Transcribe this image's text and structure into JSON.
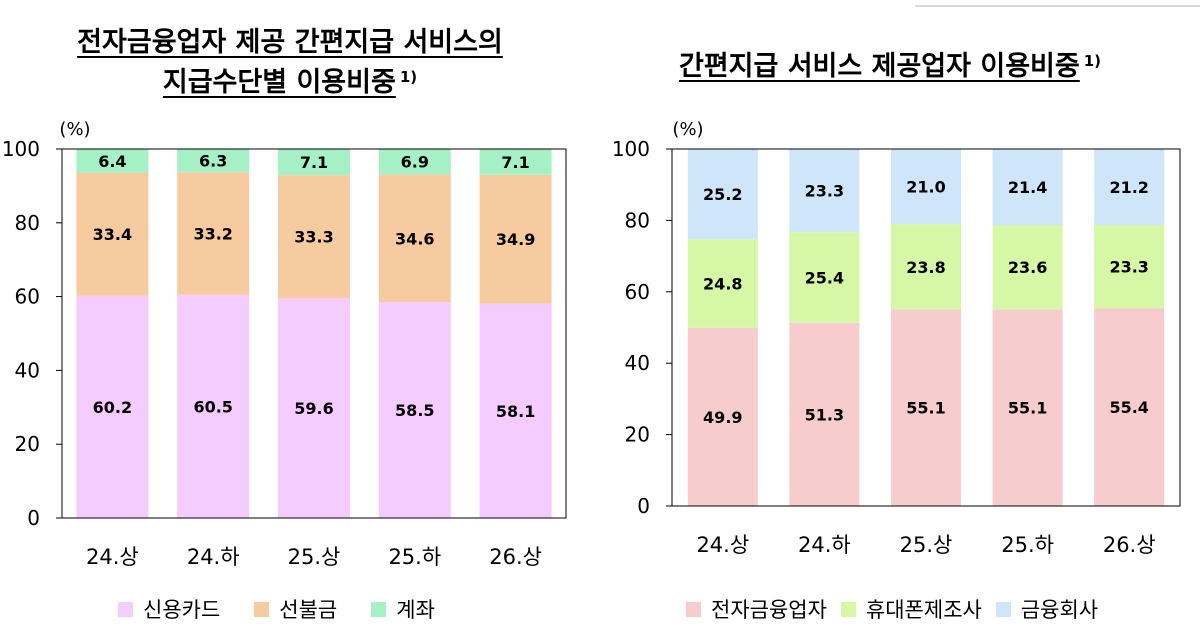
{
  "chart_data": [
    {
      "type": "bar",
      "stacked": true,
      "title_line1": "전자금융업자 제공 간편지급 서비스의",
      "title_line2": "지급수단별 이용비중",
      "title_note": "1)",
      "unit": "(%)",
      "categories": [
        "24.상",
        "24.하",
        "25.상",
        "25.하",
        "26.상"
      ],
      "series": [
        {
          "name": "신용카드",
          "color": "#f5ccff",
          "values": [
            60.2,
            60.5,
            59.6,
            58.5,
            58.1
          ]
        },
        {
          "name": "선불금",
          "color": "#f7cba0",
          "values": [
            33.4,
            33.2,
            33.3,
            34.6,
            34.9
          ]
        },
        {
          "name": "계좌",
          "color": "#a6f0c6",
          "values": [
            6.4,
            6.3,
            7.1,
            6.9,
            7.1
          ]
        }
      ],
      "ylim": [
        0,
        100
      ],
      "yticks": [
        0,
        20,
        40,
        60,
        80,
        100
      ],
      "legend_position": "bottom"
    },
    {
      "type": "bar",
      "stacked": true,
      "title_line1": "간편지급 서비스 제공업자 이용비중",
      "title_note": "1)",
      "unit": "(%)",
      "categories": [
        "24.상",
        "24.하",
        "25.상",
        "25.하",
        "26.상"
      ],
      "series": [
        {
          "name": "전자금융업자",
          "color": "#f6cccc",
          "values": [
            49.9,
            51.3,
            55.1,
            55.1,
            55.4
          ]
        },
        {
          "name": "휴대폰제조사",
          "color": "#d6f7a6",
          "values": [
            24.8,
            25.4,
            23.8,
            23.6,
            23.3
          ]
        },
        {
          "name": "금융회사",
          "color": "#cfe6fa",
          "values": [
            25.2,
            23.3,
            21.0,
            21.4,
            21.2
          ]
        }
      ],
      "ylim": [
        0,
        100
      ],
      "yticks": [
        0,
        20,
        40,
        60,
        80,
        100
      ],
      "legend_position": "bottom"
    }
  ]
}
